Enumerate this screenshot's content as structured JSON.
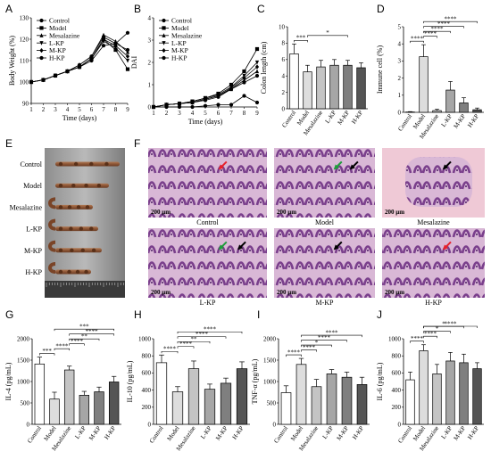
{
  "figure": {
    "panels": {
      "A": {
        "letter": "A",
        "chart_data": {
          "type": "line",
          "xlabel": "Time (days)",
          "ylabel": "Body Weight (%)",
          "x": [
            1,
            2,
            3,
            4,
            5,
            6,
            7,
            8,
            9
          ],
          "xlim": [
            1,
            9
          ],
          "ylim": [
            90,
            130
          ],
          "yticks": [
            90,
            100,
            110,
            120,
            130
          ],
          "series": [
            {
              "name": "Control",
              "marker": "circle-filled",
              "values": [
                100,
                101,
                103,
                105,
                107,
                110,
                117,
                118,
                123
              ]
            },
            {
              "name": "Model",
              "marker": "square-filled",
              "values": [
                100,
                101,
                103,
                105,
                107,
                111,
                120,
                115,
                106
              ]
            },
            {
              "name": "Mesalazine",
              "marker": "triangle-filled",
              "values": [
                100,
                101,
                103,
                105,
                108,
                112,
                122,
                119,
                114
              ]
            },
            {
              "name": "L-KP",
              "marker": "triangle-down-filled",
              "values": [
                100,
                101,
                103,
                105,
                107,
                111,
                119,
                116,
                110
              ]
            },
            {
              "name": "M-KP",
              "marker": "diamond-filled",
              "values": [
                100,
                101,
                103,
                105,
                107,
                111,
                120,
                117,
                112
              ]
            },
            {
              "name": "H-KP",
              "marker": "circle-filled",
              "values": [
                100,
                101,
                103,
                105,
                108,
                112,
                121,
                118,
                115
              ]
            }
          ]
        }
      },
      "B": {
        "letter": "B",
        "chart_data": {
          "type": "line",
          "xlabel": "Time (days)",
          "ylabel": "DAI",
          "x": [
            1,
            2,
            3,
            4,
            5,
            6,
            7,
            8,
            9
          ],
          "xlim": [
            1,
            9
          ],
          "ylim": [
            0,
            4
          ],
          "yticks": [
            0,
            1,
            2,
            3,
            4
          ],
          "series": [
            {
              "name": "Control",
              "marker": "circle-filled",
              "values": [
                0,
                0,
                0,
                0,
                0.05,
                0.1,
                0.1,
                0.5,
                0.2
              ]
            },
            {
              "name": "Model",
              "marker": "square-filled",
              "values": [
                0,
                0.1,
                0.15,
                0.25,
                0.4,
                0.6,
                1.0,
                1.6,
                2.6
              ]
            },
            {
              "name": "Mesalazine",
              "marker": "triangle-filled",
              "values": [
                0,
                0.1,
                0.15,
                0.2,
                0.35,
                0.5,
                0.8,
                1.2,
                1.6
              ]
            },
            {
              "name": "L-KP",
              "marker": "triangle-down-filled",
              "values": [
                0,
                0.1,
                0.15,
                0.25,
                0.4,
                0.55,
                0.9,
                1.4,
                2.0
              ]
            },
            {
              "name": "M-KP",
              "marker": "diamond-filled",
              "values": [
                0,
                0.1,
                0.15,
                0.2,
                0.35,
                0.5,
                0.85,
                1.3,
                1.8
              ]
            },
            {
              "name": "H-KP",
              "marker": "circle-filled",
              "values": [
                0,
                0.1,
                0.15,
                0.2,
                0.3,
                0.45,
                0.8,
                1.1,
                1.4
              ]
            }
          ]
        }
      },
      "C": {
        "letter": "C",
        "chart_data": {
          "type": "bar",
          "ylabel": "Colon length (cm)",
          "categories": [
            "Control",
            "Model",
            "Mesalazine",
            "L-KP",
            "M-KP",
            "H-KP"
          ],
          "values": [
            6.7,
            4.5,
            5.1,
            5.3,
            5.3,
            5.0
          ],
          "errors": [
            1.2,
            0.8,
            0.8,
            0.7,
            0.6,
            0.6
          ],
          "ylim": [
            0,
            10
          ],
          "yticks": [
            0,
            2,
            4,
            6,
            8,
            10
          ],
          "fills": [
            "#ffffff",
            "#dddddd",
            "#c4c4c4",
            "#a6a6a6",
            "#7f7f7f",
            "#555555"
          ],
          "significance": [
            {
              "from": 0,
              "to": 1,
              "label": "***"
            },
            {
              "from": 1,
              "to": 4,
              "label": "*"
            }
          ]
        }
      },
      "D": {
        "letter": "D",
        "chart_data": {
          "type": "bar",
          "ylabel": "Immune cell (%)",
          "categories": [
            "Control",
            "Model",
            "Mesalazine",
            "L-KP",
            "M-KP",
            "H-KP"
          ],
          "values": [
            0.02,
            3.25,
            0.1,
            1.3,
            0.55,
            0.15
          ],
          "errors": [
            0.02,
            0.7,
            0.08,
            0.5,
            0.3,
            0.1
          ],
          "ylim": [
            0,
            5
          ],
          "yticks": [
            0,
            1,
            2,
            3,
            4,
            5
          ],
          "fills": [
            "#ffffff",
            "#dddddd",
            "#c4c4c4",
            "#a6a6a6",
            "#7f7f7f",
            "#555555"
          ],
          "significance": [
            {
              "from": 0,
              "to": 1,
              "label": "****"
            },
            {
              "from": 1,
              "to": 2,
              "label": "****"
            },
            {
              "from": 1,
              "to": 3,
              "label": "****"
            },
            {
              "from": 1,
              "to": 4,
              "label": "****"
            },
            {
              "from": 1,
              "to": 5,
              "label": "****"
            }
          ]
        }
      },
      "E": {
        "letter": "E",
        "groups": [
          "Control",
          "Model",
          "Mesalazine",
          "L-KP",
          "M-KP",
          "H-KP"
        ]
      },
      "F": {
        "letter": "F",
        "scale_label": "200 μm",
        "images": [
          {
            "label": "Control",
            "arrows": [
              "red"
            ]
          },
          {
            "label": "Model",
            "arrows": [
              "green",
              "black"
            ]
          },
          {
            "label": "Mesalazine",
            "arrows": [
              "black"
            ]
          },
          {
            "label": "L-KP",
            "arrows": [
              "green",
              "black"
            ]
          },
          {
            "label": "M-KP",
            "arrows": [
              "black"
            ]
          },
          {
            "label": "H-KP",
            "arrows": [
              "red"
            ]
          }
        ]
      },
      "G": {
        "letter": "G",
        "chart_data": {
          "type": "bar",
          "ylabel": "IL-4 (pg/mL)",
          "categories": [
            "Control",
            "Model",
            "Mesalazine",
            "L-KP",
            "M-KP",
            "H-KP"
          ],
          "values": [
            1410,
            590,
            1270,
            680,
            760,
            990
          ],
          "errors": [
            160,
            160,
            90,
            90,
            110,
            130
          ],
          "ylim": [
            0,
            2000
          ],
          "yticks": [
            0,
            500,
            1000,
            1500,
            2000
          ],
          "fills": [
            "#ffffff",
            "#dddddd",
            "#c4c4c4",
            "#a6a6a6",
            "#7f7f7f",
            "#555555"
          ],
          "significance": [
            {
              "from": 0,
              "to": 1,
              "label": "***"
            },
            {
              "from": 1,
              "to": 2,
              "label": "****"
            },
            {
              "from": 2,
              "to": 3,
              "label": "****"
            },
            {
              "from": 2,
              "to": 4,
              "label": "**"
            },
            {
              "from": 2,
              "to": 5,
              "label": "****"
            },
            {
              "from": 1,
              "to": 5,
              "label": "***"
            }
          ]
        }
      },
      "H": {
        "letter": "H",
        "chart_data": {
          "type": "bar",
          "ylabel": "IL-10 (pg/mL)",
          "categories": [
            "Control",
            "Model",
            "Mesalazine",
            "L-KP",
            "M-KP",
            "H-KP"
          ],
          "values": [
            720,
            380,
            650,
            410,
            480,
            650
          ],
          "errors": [
            90,
            60,
            90,
            60,
            60,
            80
          ],
          "ylim": [
            0,
            1000
          ],
          "yticks": [
            0,
            200,
            400,
            600,
            800,
            1000
          ],
          "fills": [
            "#ffffff",
            "#dddddd",
            "#c4c4c4",
            "#a6a6a6",
            "#7f7f7f",
            "#555555"
          ],
          "significance": [
            {
              "from": 0,
              "to": 1,
              "label": "****"
            },
            {
              "from": 1,
              "to": 2,
              "label": "****"
            },
            {
              "from": 1,
              "to": 3,
              "label": "**"
            },
            {
              "from": 1,
              "to": 4,
              "label": "****"
            },
            {
              "from": 1,
              "to": 5,
              "label": "****"
            }
          ]
        }
      },
      "I": {
        "letter": "I",
        "chart_data": {
          "type": "bar",
          "ylabel": "TNF-α (pg/mL)",
          "categories": [
            "Control",
            "Model",
            "Mesalazine",
            "L-KP",
            "M-KP",
            "H-KP"
          ],
          "values": [
            740,
            1400,
            880,
            1180,
            1100,
            930
          ],
          "errors": [
            160,
            140,
            170,
            100,
            120,
            170
          ],
          "ylim": [
            0,
            2000
          ],
          "yticks": [
            0,
            500,
            1000,
            1500,
            2000
          ],
          "fills": [
            "#ffffff",
            "#dddddd",
            "#c4c4c4",
            "#a6a6a6",
            "#7f7f7f",
            "#555555"
          ],
          "significance": [
            {
              "from": 0,
              "to": 1,
              "label": "****"
            },
            {
              "from": 1,
              "to": 2,
              "label": "****"
            },
            {
              "from": 1,
              "to": 3,
              "label": "*"
            },
            {
              "from": 1,
              "to": 4,
              "label": "****"
            },
            {
              "from": 1,
              "to": 5,
              "label": "****"
            }
          ]
        }
      },
      "J": {
        "letter": "J",
        "chart_data": {
          "type": "bar",
          "ylabel": "IL-6 (pg/mL)",
          "categories": [
            "Control",
            "Model",
            "Mesalazine",
            "L-KP",
            "M-KP",
            "H-KP"
          ],
          "values": [
            520,
            860,
            590,
            740,
            720,
            650
          ],
          "errors": [
            90,
            70,
            110,
            100,
            100,
            70
          ],
          "ylim": [
            0,
            1000
          ],
          "yticks": [
            0,
            200,
            400,
            600,
            800,
            1000
          ],
          "fills": [
            "#ffffff",
            "#dddddd",
            "#c4c4c4",
            "#a6a6a6",
            "#7f7f7f",
            "#555555"
          ],
          "significance": [
            {
              "from": 0,
              "to": 1,
              "label": "****"
            },
            {
              "from": 1,
              "to": 2,
              "label": "****"
            },
            {
              "from": 1,
              "to": 3,
              "label": "*"
            },
            {
              "from": 1,
              "to": 4,
              "label": "*"
            },
            {
              "from": 1,
              "to": 5,
              "label": "****"
            }
          ]
        }
      }
    }
  }
}
